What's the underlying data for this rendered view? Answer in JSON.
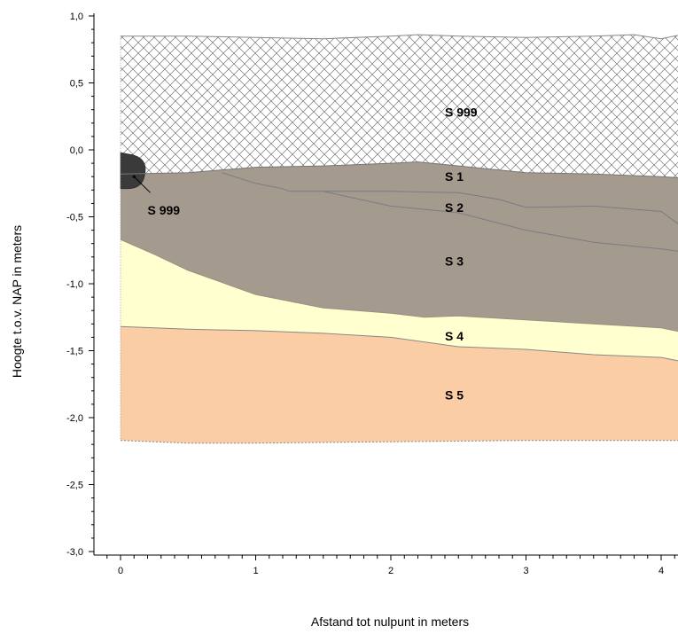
{
  "chart_data": {
    "type": "area",
    "title": "",
    "xlabel": "Afstand tot nulpunt in meters",
    "ylabel": "Hoogte t.o.v. NAP in meters",
    "xlim": [
      -0.2,
      4.15
    ],
    "ylim": [
      -3.0,
      1.0
    ],
    "x_ticks": [
      0,
      1,
      2,
      3,
      4
    ],
    "x_tick_labels": [
      "0",
      "1",
      "2",
      "3",
      "4"
    ],
    "y_ticks": [
      1.0,
      0.5,
      0.0,
      -0.5,
      -1.0,
      -1.5,
      -2.0,
      -2.5,
      -3.0
    ],
    "y_tick_labels": [
      "1,0",
      "0,5",
      "0,0",
      "-0,5",
      "-1,0",
      "-1,5",
      "-2,0",
      "-2,5",
      "-3,0"
    ],
    "grid": false,
    "boundaries": {
      "surface": [
        [
          0,
          0.85
        ],
        [
          0.5,
          0.85
        ],
        [
          1.0,
          0.84
        ],
        [
          1.5,
          0.83
        ],
        [
          2.0,
          0.85
        ],
        [
          2.2,
          0.86
        ],
        [
          2.5,
          0.85
        ],
        [
          3.0,
          0.84
        ],
        [
          3.5,
          0.85
        ],
        [
          3.8,
          0.86
        ],
        [
          4.0,
          0.83
        ],
        [
          4.15,
          0.86
        ]
      ],
      "s999_bottom": [
        [
          0,
          -0.18
        ],
        [
          0.5,
          -0.17
        ],
        [
          1.0,
          -0.13
        ],
        [
          1.5,
          -0.12
        ],
        [
          2.0,
          -0.1
        ],
        [
          2.2,
          -0.09
        ],
        [
          2.5,
          -0.12
        ],
        [
          3.0,
          -0.17
        ],
        [
          3.5,
          -0.18
        ],
        [
          4.0,
          -0.2
        ],
        [
          4.15,
          -0.21
        ]
      ],
      "s1_bottom": [
        [
          0.75,
          -0.17
        ],
        [
          1.0,
          -0.25
        ],
        [
          1.2,
          -0.29
        ],
        [
          1.25,
          -0.31
        ],
        [
          1.5,
          -0.31
        ],
        [
          2.0,
          -0.31
        ],
        [
          2.5,
          -0.32
        ],
        [
          2.8,
          -0.37
        ],
        [
          3.0,
          -0.43
        ],
        [
          3.5,
          -0.42
        ],
        [
          4.0,
          -0.46
        ],
        [
          4.15,
          -0.57
        ]
      ],
      "s2_bottom": [
        [
          1.5,
          -0.31
        ],
        [
          2.0,
          -0.42
        ],
        [
          2.5,
          -0.47
        ],
        [
          3.0,
          -0.6
        ],
        [
          3.5,
          -0.69
        ],
        [
          4.0,
          -0.74
        ],
        [
          4.15,
          -0.76
        ]
      ],
      "s3_bottom": [
        [
          0,
          -0.67
        ],
        [
          0.25,
          -0.78
        ],
        [
          0.5,
          -0.9
        ],
        [
          1.0,
          -1.08
        ],
        [
          1.5,
          -1.18
        ],
        [
          2.0,
          -1.22
        ],
        [
          2.25,
          -1.25
        ],
        [
          2.5,
          -1.24
        ],
        [
          3.0,
          -1.27
        ],
        [
          3.5,
          -1.3
        ],
        [
          4.0,
          -1.33
        ],
        [
          4.15,
          -1.36
        ]
      ],
      "s4_bottom": [
        [
          0,
          -1.32
        ],
        [
          0.5,
          -1.34
        ],
        [
          1.0,
          -1.35
        ],
        [
          1.5,
          -1.37
        ],
        [
          2.0,
          -1.4
        ],
        [
          2.5,
          -1.47
        ],
        [
          3.0,
          -1.49
        ],
        [
          3.5,
          -1.53
        ],
        [
          4.0,
          -1.55
        ],
        [
          4.15,
          -1.58
        ]
      ],
      "s5_bottom": [
        [
          0,
          -2.17
        ],
        [
          0.5,
          -2.19
        ],
        [
          1.0,
          -2.19
        ],
        [
          2.0,
          -2.18
        ],
        [
          3.0,
          -2.17
        ],
        [
          4.0,
          -2.17
        ],
        [
          4.15,
          -2.17
        ]
      ]
    },
    "inclusion": {
      "x": 0.05,
      "y": -0.15,
      "rx": 0.13,
      "ry": 0.13
    },
    "layers": [
      {
        "name": "S 999",
        "fill": "#ffffff",
        "pattern": "crosshatch",
        "label_x": 2.4,
        "label_y": 0.28
      },
      {
        "name": "S 1",
        "fill": "#a59a8e",
        "label_x": 2.4,
        "label_y": -0.2
      },
      {
        "name": "S 2",
        "fill": "#a59a8e",
        "label_x": 2.4,
        "label_y": -0.43
      },
      {
        "name": "S 3",
        "fill": "#a59a8e",
        "label_x": 2.4,
        "label_y": -0.83
      },
      {
        "name": "S 4",
        "fill": "#ffffd0",
        "label_x": 2.4,
        "label_y": -1.39
      },
      {
        "name": "S 5",
        "fill": "#fbcda5",
        "label_x": 2.4,
        "label_y": -1.83
      }
    ],
    "annotation": {
      "label": "S 999",
      "fill": "#3a3a3a",
      "label_x": 0.2,
      "label_y": -0.45
    }
  }
}
